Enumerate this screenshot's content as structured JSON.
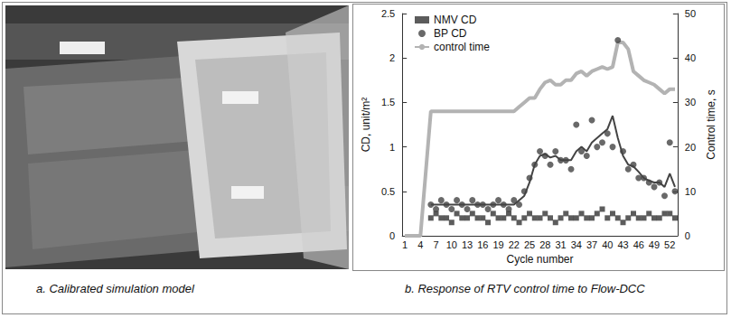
{
  "chart_data": {
    "type": "scatter",
    "caption": "b. Response of RTV control time to Flow-DCC",
    "x_label": "Cycle number",
    "y_label": "CD, unit/m²",
    "y2_label": "Control time, s",
    "categories": [
      "1",
      null,
      null,
      "4",
      null,
      null,
      "7",
      null,
      null,
      "10",
      null,
      null,
      "13",
      null,
      null,
      "16",
      null,
      null,
      "19",
      null,
      null,
      "22",
      null,
      null,
      "25",
      null,
      null,
      "28",
      null,
      null,
      "31",
      null,
      null,
      "34",
      null,
      null,
      "37",
      null,
      null,
      "40",
      null,
      null,
      "43",
      null,
      null,
      "46",
      null,
      null,
      "49",
      null,
      null,
      "52",
      null
    ],
    "ylim": [
      0,
      2.5
    ],
    "yticks": [
      0,
      0.5,
      1,
      1.5,
      2,
      2.5
    ],
    "y2lim": [
      0,
      50
    ],
    "y2ticks": [
      0,
      10,
      20,
      30,
      40,
      50
    ],
    "grid": false,
    "legend": "upper left",
    "series": [
      {
        "name": "NMV CD",
        "type": "scatter",
        "marker": "square",
        "color": "#333333",
        "values": [
          null,
          null,
          null,
          null,
          null,
          0.2,
          0.25,
          0.2,
          0.2,
          0.15,
          0.25,
          0.2,
          0.2,
          0.25,
          0.2,
          0.2,
          0.15,
          0.25,
          0.2,
          0.2,
          0.25,
          0.2,
          0.15,
          0.2,
          0.25,
          0.2,
          0.2,
          0.25,
          0.2,
          0.15,
          0.2,
          0.25,
          0.2,
          0.2,
          0.25,
          0.2,
          0.2,
          0.25,
          0.3,
          0.2,
          0.25,
          0.2,
          0.15,
          0.2,
          0.25,
          0.2,
          0.2,
          0.25,
          0.2,
          0.2,
          0.25,
          0.25,
          0.2
        ]
      },
      {
        "name": "BP CD",
        "type": "scatter",
        "marker": "circle",
        "color": "#444444",
        "values": [
          null,
          null,
          null,
          null,
          null,
          0.35,
          0.3,
          0.4,
          0.35,
          0.3,
          0.4,
          0.35,
          0.3,
          0.4,
          0.35,
          0.35,
          0.3,
          0.35,
          0.4,
          0.35,
          0.3,
          0.4,
          0.35,
          0.5,
          0.65,
          0.8,
          0.95,
          0.9,
          0.8,
          0.95,
          0.85,
          0.85,
          0.75,
          1.25,
          0.95,
          0.9,
          1.3,
          1.0,
          1.05,
          1.15,
          1.0,
          2.2,
          0.95,
          0.75,
          0.8,
          0.65,
          0.65,
          0.6,
          0.55,
          0.6,
          0.45,
          1.05,
          0.5
        ],
        "trend": [
          null,
          null,
          null,
          null,
          null,
          0.35,
          0.35,
          0.35,
          0.35,
          0.35,
          0.35,
          0.35,
          0.35,
          0.35,
          0.35,
          0.35,
          0.35,
          0.35,
          0.35,
          0.35,
          0.35,
          0.35,
          0.4,
          0.45,
          0.6,
          0.8,
          0.9,
          0.92,
          0.88,
          0.9,
          0.85,
          0.85,
          0.85,
          0.95,
          1.0,
          0.95,
          1.05,
          1.1,
          1.15,
          1.2,
          1.35,
          1.1,
          0.9,
          0.8,
          0.78,
          0.72,
          0.65,
          0.62,
          0.6,
          0.6,
          0.55,
          0.7,
          0.55
        ]
      },
      {
        "name": "control time",
        "type": "line",
        "axis": "y2",
        "line_style": "solid",
        "color": "#b3b3b3",
        "values": [
          0,
          0,
          0,
          0,
          14,
          28,
          28,
          28,
          28,
          28,
          28,
          28,
          28,
          28,
          28,
          28,
          28,
          28,
          28,
          28,
          28,
          28,
          29,
          30,
          31,
          31,
          33,
          34.5,
          35,
          34,
          34,
          35,
          35,
          36.5,
          37,
          36,
          37,
          37.5,
          38,
          37.5,
          38,
          43.5,
          43.5,
          42,
          37,
          36,
          35,
          34.5,
          34,
          33,
          32,
          33,
          33
        ]
      }
    ]
  },
  "panels": {
    "a": {
      "caption": "a. Calibrated simulation model"
    }
  }
}
